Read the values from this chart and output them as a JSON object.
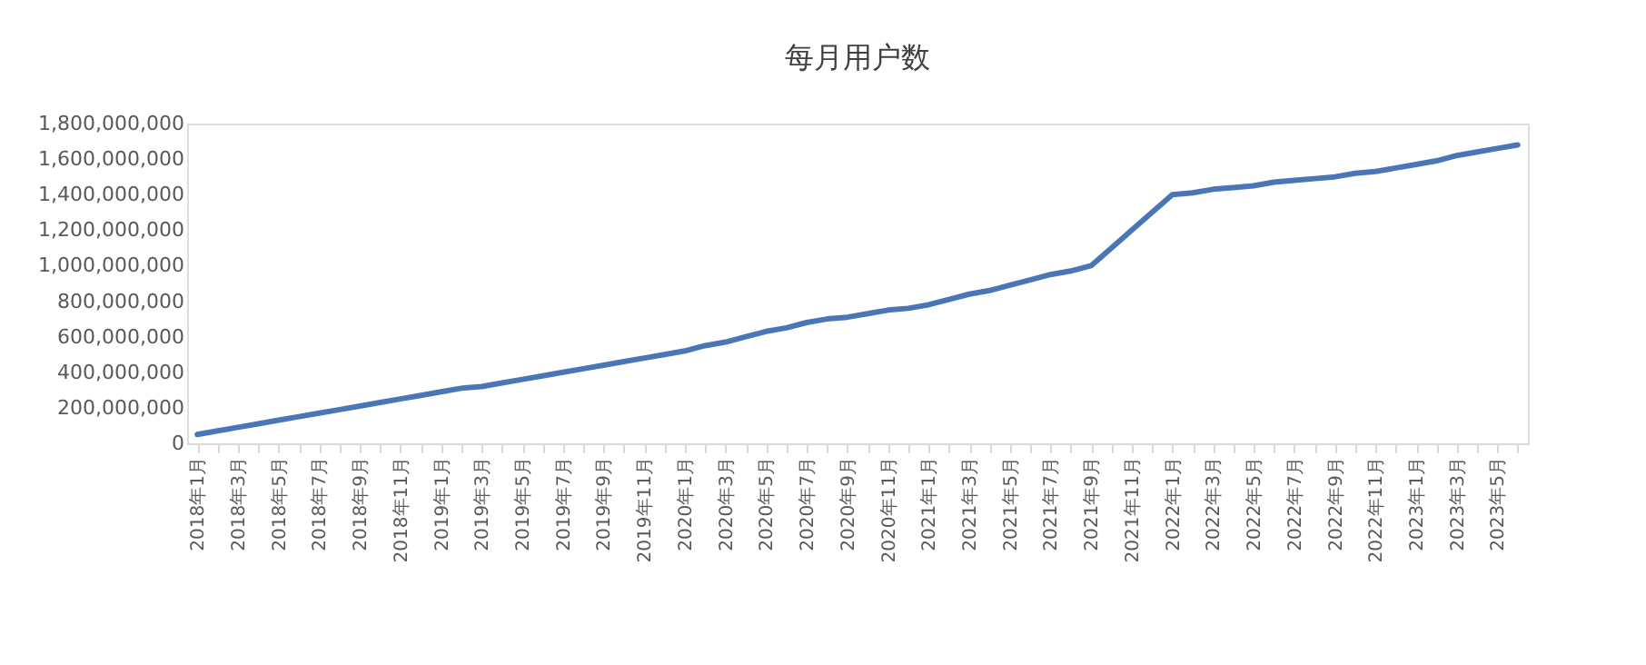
{
  "chart_data": {
    "type": "line",
    "title": "每月用户数",
    "categories": [
      "2018年1月",
      null,
      "2018年3月",
      null,
      "2018年5月",
      null,
      "2018年7月",
      null,
      "2018年9月",
      null,
      "2018年11月",
      null,
      "2019年1月",
      null,
      "2019年3月",
      null,
      "2019年5月",
      null,
      "2019年7月",
      null,
      "2019年9月",
      null,
      "2019年11月",
      null,
      "2020年1月",
      null,
      "2020年3月",
      null,
      "2020年5月",
      null,
      "2020年7月",
      null,
      "2020年9月",
      null,
      "2020年11月",
      null,
      "2021年1月",
      null,
      "2021年3月",
      null,
      "2021年5月",
      null,
      "2021年7月",
      null,
      "2021年9月",
      null,
      "2021年11月",
      null,
      "2022年1月",
      null,
      "2022年3月",
      null,
      "2022年5月",
      null,
      "2022年7月",
      null,
      "2022年9月",
      null,
      "2022年11月",
      null,
      "2023年1月",
      null,
      "2023年3月",
      null,
      "2023年5月",
      null
    ],
    "series": [
      {
        "color": "#4a76b8",
        "values": [
          50000000,
          70000000,
          90000000,
          110000000,
          130000000,
          150000000,
          170000000,
          190000000,
          210000000,
          230000000,
          250000000,
          270000000,
          290000000,
          310000000,
          320000000,
          340000000,
          360000000,
          380000000,
          400000000,
          420000000,
          440000000,
          460000000,
          480000000,
          500000000,
          520000000,
          550000000,
          570000000,
          600000000,
          630000000,
          650000000,
          680000000,
          700000000,
          710000000,
          730000000,
          750000000,
          760000000,
          780000000,
          810000000,
          840000000,
          860000000,
          890000000,
          920000000,
          950000000,
          970000000,
          1000000000,
          1100000000,
          1200000000,
          1300000000,
          1400000000,
          1410000000,
          1430000000,
          1440000000,
          1450000000,
          1470000000,
          1480000000,
          1490000000,
          1500000000,
          1520000000,
          1530000000,
          1550000000,
          1570000000,
          1590000000,
          1620000000,
          1640000000,
          1660000000,
          1680000000
        ]
      }
    ],
    "ylim": [
      0,
      1800000000
    ],
    "yticks": [
      {
        "value": 0,
        "label": "0"
      },
      {
        "value": 200000000,
        "label": "200,000,000"
      },
      {
        "value": 400000000,
        "label": "400,000,000"
      },
      {
        "value": 600000000,
        "label": "600,000,000"
      },
      {
        "value": 800000000,
        "label": "800,000,000"
      },
      {
        "value": 1000000000,
        "label": "1,000,000,000"
      },
      {
        "value": 1200000000,
        "label": "1,200,000,000"
      },
      {
        "value": 1400000000,
        "label": "1,400,000,000"
      },
      {
        "value": 1600000000,
        "label": "1,600,000,000"
      },
      {
        "value": 1800000000,
        "label": "1,800,000,000"
      }
    ],
    "grid": false,
    "legend": false,
    "marker": "none",
    "line_style": "solid"
  }
}
